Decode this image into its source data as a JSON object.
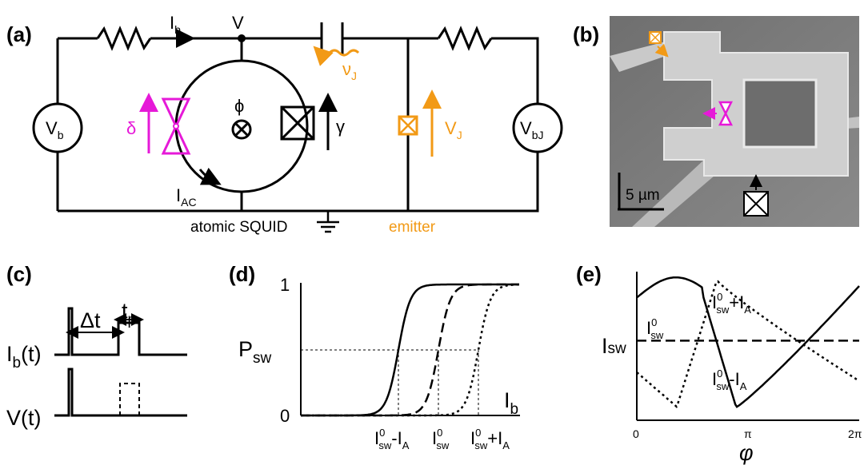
{
  "panels": {
    "a": "(a)",
    "b": "(b)",
    "c": "(c)",
    "d": "(d)",
    "e": "(e)"
  },
  "circuit": {
    "vb": "V",
    "vb_sub": "b",
    "ib": "I",
    "ib_sub": "b",
    "v_node": "V",
    "phi": "ϕ",
    "delta": "δ",
    "gamma": "γ",
    "iac": "I",
    "iac_sub": "AC",
    "nu": "ν",
    "nu_sub": "J",
    "vj": "V",
    "vj_sub": "J",
    "vbj": "V",
    "vbj_sub": "bJ",
    "atomic_squid": "atomic SQUID",
    "emitter": "emitter"
  },
  "micrograph": {
    "scale": "5 µm"
  },
  "pulses": {
    "tp": "t",
    "tp_sub": "p",
    "dt": "Δt",
    "ib_t": "I",
    "ib_t_sub": "b",
    "ib_t_arg": "(t)",
    "v_t": "V(t)"
  },
  "chart_data": [
    {
      "type": "line",
      "panel": "d",
      "ylabel": "P",
      "ylabel_sub": "sw",
      "xlabel": "I",
      "xlabel_sub": "b",
      "yticks": [
        "0",
        "1"
      ],
      "xticks": [
        {
          "main": "I",
          "sup": "0",
          "sub": "sw",
          "suffix": "-I",
          "suffix_sub": "A"
        },
        {
          "main": "I",
          "sup": "0",
          "sub": "sw",
          "suffix": "",
          "suffix_sub": ""
        },
        {
          "main": "I",
          "sup": "0",
          "sub": "sw",
          "suffix": "+I",
          "suffix_sub": "A"
        }
      ],
      "series": [
        {
          "style": "solid",
          "center": 1.0,
          "width": 0.5
        },
        {
          "style": "dashed",
          "center": 2.0,
          "width": 0.5
        },
        {
          "style": "dotted",
          "center": 3.0,
          "width": 0.5
        }
      ],
      "threshold": 0.5
    },
    {
      "type": "line",
      "panel": "e",
      "ylabel": "I",
      "ylabel_sub": "sw",
      "xlabel": "φ",
      "xticks": [
        "0",
        "π",
        "2π"
      ],
      "annotations": [
        {
          "main": "I",
          "sup": "0",
          "sub": "sw",
          "suffix": ""
        },
        {
          "main": "I",
          "sup": "0",
          "sub": "sw",
          "suffix": "+I",
          "suffix_sub": "A"
        },
        {
          "main": "I",
          "sup": "0",
          "sub": "sw",
          "suffix": "-I",
          "suffix_sub": "A"
        }
      ],
      "series": [
        {
          "style": "solid",
          "label": ""
        },
        {
          "style": "dashed",
          "label": ""
        },
        {
          "style": "dotted",
          "label": ""
        }
      ]
    }
  ],
  "colors": {
    "magenta": "#e619d8",
    "orange": "#f29a16",
    "black": "#000000"
  }
}
